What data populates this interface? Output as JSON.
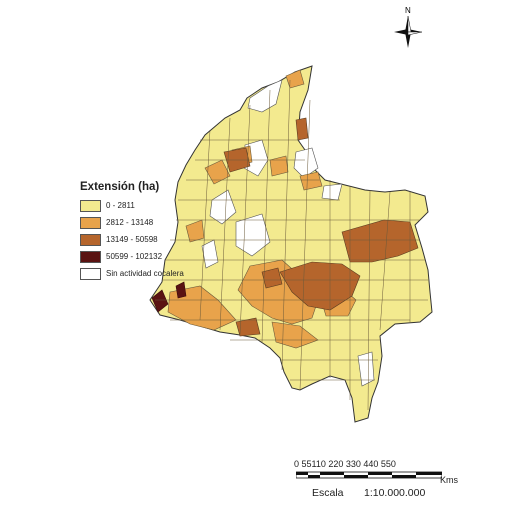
{
  "legend": {
    "title": "Extensión (ha)",
    "classes": [
      {
        "label": "0 - 2811",
        "color": "#f3ea8f"
      },
      {
        "label": "2812 - 13148",
        "color": "#e8a34b"
      },
      {
        "label": "13149 - 50598",
        "color": "#b5652c"
      },
      {
        "label": "50599 - 102132",
        "color": "#5a1312"
      },
      {
        "label": "Sin actividad cocalera",
        "color": "#ffffff"
      }
    ]
  },
  "scale": {
    "labels": "0 55110  220  330  440  550",
    "unit": "Kms",
    "title": "Escala",
    "ratio": "1:10.000.000"
  },
  "north": {
    "label": "N",
    "icon": "north-arrow-icon"
  },
  "colors": {
    "border": "#6b5a3a",
    "outline": "#333333"
  }
}
